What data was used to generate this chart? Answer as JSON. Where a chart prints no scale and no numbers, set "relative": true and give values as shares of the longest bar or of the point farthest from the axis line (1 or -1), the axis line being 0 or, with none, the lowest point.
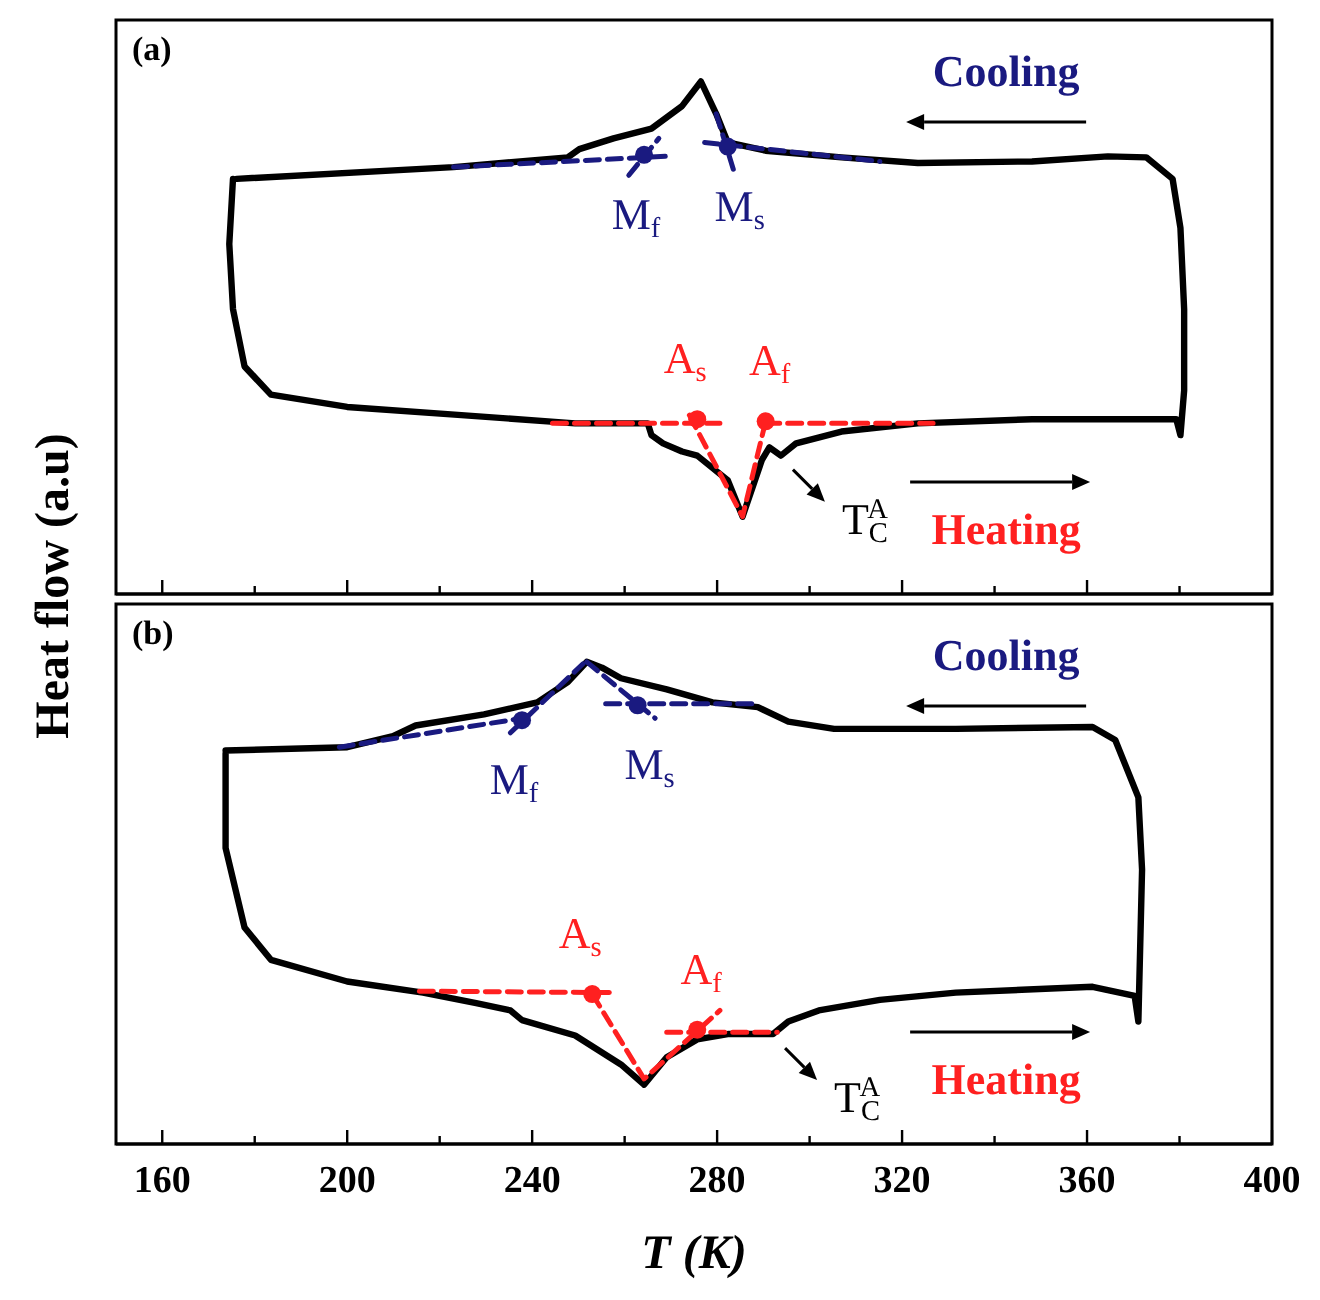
{
  "chart_data": [
    {
      "type": "line",
      "title": "(a)",
      "ylabel": "Heat flow (a.u)",
      "relative": true,
      "xlim": [
        150,
        400
      ],
      "xticks": [
        160,
        {
          "value": 180,
          "label": null
        },
        200,
        {
          "value": 220,
          "label": null
        },
        240,
        {
          "value": 260,
          "label": null
        },
        280,
        {
          "value": 300,
          "label": null
        },
        320,
        {
          "value": 340,
          "label": null
        },
        360,
        {
          "value": 380,
          "label": null
        },
        400
      ],
      "tick_labels": false,
      "series": [
        {
          "color": "#000000",
          "line_style": "solid",
          "x": [
            176.1,
            223.0,
            247.7,
            250.2,
            257.6,
            265.8,
            272.4,
            276.5,
            279.8,
            282.3,
            290.5,
            306.9,
            323.4,
            348.1,
            364.5,
            372.8,
            378.5,
            380.2,
            381,
            381,
            380.2,
            379.3,
            348.1,
            323.4,
            306.9,
            297.1,
            293.8,
            291.3,
            289.7,
            285.5,
            282.3,
            275.7,
            272.4,
            268.3,
            265.8,
            265.0,
            249.3,
            224.7,
            200.0,
            183.5,
            177.8,
            175.3,
            174.5,
            175.3
          ],
          "values": [
            0.81,
            0.833,
            0.852,
            0.868,
            0.889,
            0.908,
            0.952,
            1.0,
            0.937,
            0.881,
            0.865,
            0.852,
            0.841,
            0.844,
            0.854,
            0.852,
            0.81,
            0.714,
            0.556,
            0.397,
            0.31,
            0.341,
            0.341,
            0.333,
            0.317,
            0.294,
            0.27,
            0.286,
            0.262,
            0.151,
            0.222,
            0.27,
            0.278,
            0.294,
            0.31,
            0.333,
            0.333,
            0.349,
            0.365,
            0.389,
            0.444,
            0.556,
            0.683,
            0.81
          ]
        },
        {
          "color": "#1a1a80",
          "line_style": "dashed",
          "x": [
            223.0,
            268.9
          ],
          "values": [
            0.833,
            0.854
          ]
        },
        {
          "color": "#1a1a80",
          "line_style": "dashed",
          "x": [
            260.9,
            267.4
          ],
          "values": [
            0.817,
            0.889
          ]
        },
        {
          "color": "#1a1a80",
          "line_style": "dashed",
          "x": [
            277.3,
            315.2
          ],
          "values": [
            0.881,
            0.844
          ]
        },
        {
          "color": "#1a1a80",
          "line_style": "dashed",
          "x": [
            279.8,
            283.9
          ],
          "values": [
            0.937,
            0.817
          ]
        },
        {
          "color": "#ff2020",
          "line_style": "dashed",
          "x": [
            244.4,
            280.6
          ],
          "values": [
            0.333,
            0.333
          ]
        },
        {
          "color": "#ff2020",
          "line_style": "dashed",
          "x": [
            274.0,
            285.5,
            290.5
          ],
          "values": [
            0.349,
            0.151,
            0.337
          ]
        },
        {
          "color": "#ff2020",
          "line_style": "dashed",
          "x": [
            290.5,
            326.7
          ],
          "values": [
            0.333,
            0.333
          ]
        },
        {
          "type": "scatter",
          "color": "#1a1a80",
          "marker": "circle",
          "x": [
            264.2,
            282.3
          ],
          "values": [
            0.857,
            0.873
          ]
        },
        {
          "type": "scatter",
          "color": "#ff2020",
          "marker": "circle",
          "x": [
            275.7,
            290.5
          ],
          "values": [
            0.341,
            0.337
          ]
        }
      ],
      "annotations": [
        {
          "text": "M$_{f}$",
          "x": 264.2,
          "y": 0.857
        },
        {
          "text": "M$_{s}$",
          "x": 282.3,
          "y": 0.873
        },
        {
          "text": "A$_{s}$",
          "x": 275.7,
          "y": 0.341
        },
        {
          "text": "A$_{f}$",
          "x": 290.5,
          "y": 0.337
        },
        {
          "text": "T$_{C}$$^{A}$",
          "x": 293.8,
          "y": 0.27
        },
        "Cooling",
        "Heating"
      ]
    },
    {
      "type": "line",
      "title": "(b)",
      "xlabel": "T (K)",
      "relative": true,
      "xlim": [
        150,
        400
      ],
      "xticks": [
        160,
        {
          "value": 180,
          "label": null
        },
        200,
        {
          "value": 220,
          "label": null
        },
        240,
        {
          "value": 260,
          "label": null
        },
        280,
        {
          "value": 300,
          "label": null
        },
        320,
        {
          "value": 340,
          "label": null
        },
        360,
        {
          "value": 380,
          "label": null
        },
        400
      ],
      "tick_labels": "x",
      "series": [
        {
          "color": "#000000",
          "line_style": "solid",
          "x": [
            173.7,
            200.0,
            209.9,
            214.8,
            229.6,
            241.1,
            247.7,
            251.8,
            255.1,
            259.2,
            269.1,
            279.0,
            288.8,
            295.4,
            305.3,
            331.6,
            361.2,
            366.1,
            371.1,
            371.9,
            371.1,
            370.3,
            361.2,
            331.6,
            315.2,
            302.0,
            295.4,
            292.1,
            282.3,
            275.7,
            269.1,
            264.2,
            259.2,
            249.3,
            237.8,
            235.3,
            227.9,
            216.4,
            200.0,
            183.5,
            177.8,
            173.7,
            173.7
          ],
          "values": [
            0.816,
            0.823,
            0.846,
            0.868,
            0.891,
            0.916,
            0.958,
            1.0,
            0.988,
            0.966,
            0.943,
            0.916,
            0.906,
            0.876,
            0.861,
            0.861,
            0.865,
            0.838,
            0.719,
            0.569,
            0.254,
            0.307,
            0.326,
            0.314,
            0.299,
            0.277,
            0.254,
            0.228,
            0.228,
            0.217,
            0.18,
            0.123,
            0.165,
            0.225,
            0.257,
            0.277,
            0.292,
            0.314,
            0.337,
            0.382,
            0.449,
            0.614,
            0.81
          ]
        },
        {
          "color": "#1a1a80",
          "line_style": "dashed",
          "x": [
            198.3,
            237.8
          ],
          "values": [
            0.823,
            0.883
          ]
        },
        {
          "color": "#1a1a80",
          "line_style": "dashed",
          "x": [
            235.3,
            251.0
          ],
          "values": [
            0.853,
            0.996
          ]
        },
        {
          "color": "#1a1a80",
          "line_style": "dashed",
          "x": [
            255.9,
            288.8
          ],
          "values": [
            0.913,
            0.913
          ]
        },
        {
          "color": "#1a1a80",
          "line_style": "dashed",
          "x": [
            251.8,
            266.6
          ],
          "values": [
            1.0,
            0.883
          ]
        },
        {
          "color": "#ff2020",
          "line_style": "dashed",
          "x": [
            215.6,
            257.6
          ],
          "values": [
            0.317,
            0.314
          ]
        },
        {
          "color": "#ff2020",
          "line_style": "dashed",
          "x": [
            253.0,
            264.2,
            280.6
          ],
          "values": [
            0.311,
            0.135,
            0.277
          ]
        },
        {
          "color": "#ff2020",
          "line_style": "dashed",
          "x": [
            269.1,
            293.0
          ],
          "values": [
            0.232,
            0.232
          ]
        },
        {
          "type": "scatter",
          "color": "#1a1a80",
          "marker": "circle",
          "x": [
            237.8,
            262.8
          ],
          "values": [
            0.879,
            0.91
          ]
        },
        {
          "type": "scatter",
          "color": "#ff2020",
          "marker": "circle",
          "x": [
            253.0,
            275.7
          ],
          "values": [
            0.311,
            0.237
          ]
        }
      ],
      "annotations": [
        {
          "text": "M$_{f}$",
          "x": 237.8,
          "y": 0.879
        },
        {
          "text": "M$_{s}$",
          "x": 262.8,
          "y": 0.91
        },
        {
          "text": "A$_{s}$",
          "x": 253.0,
          "y": 0.311
        },
        {
          "text": "A$_{f}$",
          "x": 275.7,
          "y": 0.237
        },
        {
          "text": "T$_{C}$$^{A}$",
          "x": 292.1,
          "y": 0.228
        },
        "Cooling",
        "Heating"
      ]
    }
  ]
}
